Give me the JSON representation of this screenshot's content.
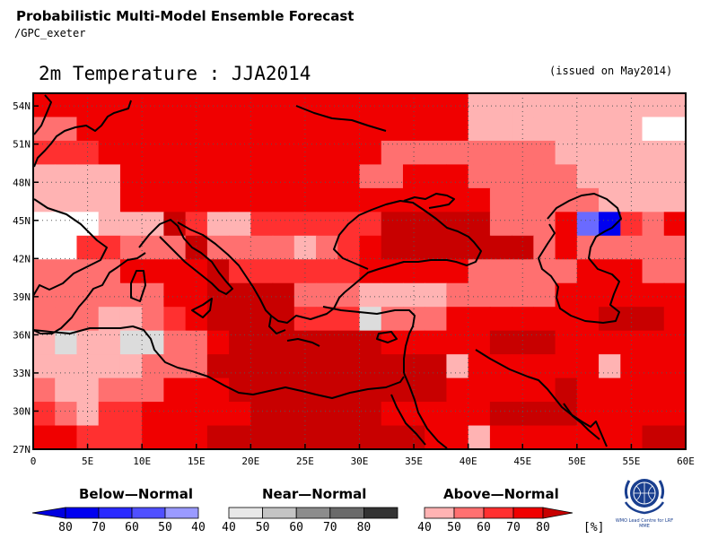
{
  "header": {
    "title": "Probabilistic Multi-Model Ensemble Forecast",
    "subtitle": "/GPC_exeter"
  },
  "map": {
    "title": "2m Temperature : JJA2014",
    "issued": "(issued on May2014)",
    "lon_range": [
      0,
      60
    ],
    "lat_range": [
      27,
      55
    ],
    "lon_ticks": [
      "0",
      "5E",
      "10E",
      "15E",
      "20E",
      "25E",
      "30E",
      "35E",
      "40E",
      "45E",
      "50E",
      "55E",
      "60E"
    ],
    "lat_ticks": [
      "27N",
      "30N",
      "33N",
      "36N",
      "39N",
      "42N",
      "45N",
      "48N",
      "51N",
      "54N"
    ],
    "grid": true,
    "categories": {
      "W": "#ffffff",
      "G1": "#dcdcdc",
      "A1": "#ffb3b3",
      "A2": "#ff7070",
      "A3": "#ff3030",
      "A4": "#f00000",
      "A5": "#c80000",
      "B3": "#6a6aff",
      "B4": "#0000f0"
    },
    "cells_note": "",
    "rows": [
      [
        "A4",
        "A4",
        "A4",
        "A4",
        "A4",
        "A4",
        "A4",
        "A4",
        "A4",
        "A4",
        "A4",
        "A4",
        "A4",
        "A4",
        "A4",
        "A4",
        "A4",
        "A4",
        "A4",
        "A4",
        "A1",
        "A1",
        "A1",
        "A1",
        "A1",
        "A1",
        "A1",
        "A1",
        "A1",
        "A1"
      ],
      [
        "A2",
        "A2",
        "A4",
        "A4",
        "A4",
        "A4",
        "A4",
        "A4",
        "A4",
        "A4",
        "A4",
        "A4",
        "A4",
        "A4",
        "A4",
        "A4",
        "A4",
        "A4",
        "A4",
        "A4",
        "A1",
        "A1",
        "A1",
        "A1",
        "A1",
        "A1",
        "A1",
        "A1",
        "W",
        "W"
      ],
      [
        "A3",
        "A3",
        "A3",
        "A4",
        "A4",
        "A4",
        "A4",
        "A4",
        "A4",
        "A4",
        "A4",
        "A4",
        "A4",
        "A4",
        "A4",
        "A4",
        "A2",
        "A2",
        "A2",
        "A2",
        "A2",
        "A2",
        "A2",
        "A2",
        "A1",
        "A1",
        "A1",
        "A1",
        "A1",
        "A1"
      ],
      [
        "A1",
        "A1",
        "A1",
        "A1",
        "A4",
        "A4",
        "A4",
        "A4",
        "A4",
        "A4",
        "A4",
        "A4",
        "A4",
        "A4",
        "A4",
        "A2",
        "A2",
        "A4",
        "A4",
        "A4",
        "A2",
        "A2",
        "A2",
        "A2",
        "A2",
        "A1",
        "A1",
        "A1",
        "A1",
        "A1"
      ],
      [
        "A1",
        "A1",
        "A1",
        "A1",
        "A4",
        "A4",
        "A4",
        "A4",
        "A4",
        "A4",
        "A4",
        "A4",
        "A4",
        "A4",
        "A4",
        "A4",
        "A4",
        "A4",
        "A4",
        "A4",
        "A4",
        "A2",
        "A2",
        "A2",
        "A2",
        "A2",
        "A1",
        "A1",
        "A1",
        "A1"
      ],
      [
        "W",
        "W",
        "W",
        "A1",
        "A1",
        "A1",
        "A5",
        "A3",
        "A1",
        "A1",
        "A3",
        "A3",
        "A3",
        "A3",
        "A3",
        "A3",
        "A5",
        "A5",
        "A5",
        "A5",
        "A5",
        "A2",
        "A2",
        "A2",
        "A4",
        "B3",
        "B4",
        "A3",
        "A2",
        "A4"
      ],
      [
        "W",
        "W",
        "A3",
        "A3",
        "A2",
        "A2",
        "A2",
        "A5",
        "A2",
        "A2",
        "A2",
        "A2",
        "A1",
        "A2",
        "A3",
        "A4",
        "A5",
        "A5",
        "A5",
        "A5",
        "A5",
        "A5",
        "A5",
        "A2",
        "A4",
        "A2",
        "A2",
        "A2",
        "A2",
        "A2"
      ],
      [
        "A2",
        "A2",
        "A2",
        "A2",
        "A4",
        "A4",
        "A4",
        "A4",
        "A5",
        "A3",
        "A3",
        "A3",
        "A3",
        "A3",
        "A3",
        "A4",
        "A4",
        "A4",
        "A4",
        "A4",
        "A2",
        "A2",
        "A2",
        "A2",
        "A2",
        "A4",
        "A4",
        "A4",
        "A2",
        "A2"
      ],
      [
        "A2",
        "A2",
        "A2",
        "A2",
        "A2",
        "A2",
        "A4",
        "A4",
        "A5",
        "A5",
        "A5",
        "A5",
        "A2",
        "A2",
        "A2",
        "A1",
        "A1",
        "A1",
        "A1",
        "A2",
        "A2",
        "A2",
        "A2",
        "A2",
        "A4",
        "A4",
        "A4",
        "A4",
        "A4",
        "A4"
      ],
      [
        "A2",
        "A2",
        "A2",
        "A1",
        "A1",
        "A2",
        "A3",
        "A4",
        "A5",
        "A5",
        "A5",
        "A5",
        "A3",
        "A3",
        "A3",
        "G1",
        "A2",
        "A2",
        "A2",
        "A4",
        "A4",
        "A4",
        "A4",
        "A4",
        "A4",
        "A4",
        "A5",
        "A5",
        "A5",
        "A4"
      ],
      [
        "A1",
        "G1",
        "A1",
        "A1",
        "G1",
        "G1",
        "A2",
        "A2",
        "A4",
        "A5",
        "A5",
        "A5",
        "A5",
        "A5",
        "A5",
        "A5",
        "A4",
        "A4",
        "A4",
        "A4",
        "A4",
        "A5",
        "A5",
        "A5",
        "A4",
        "A4",
        "A4",
        "A4",
        "A4",
        "A4"
      ],
      [
        "A1",
        "A1",
        "A1",
        "A1",
        "A1",
        "A2",
        "A2",
        "A2",
        "A5",
        "A5",
        "A5",
        "A5",
        "A5",
        "A5",
        "A5",
        "A5",
        "A5",
        "A5",
        "A5",
        "A1",
        "A4",
        "A4",
        "A4",
        "A4",
        "A4",
        "A4",
        "A1",
        "A4",
        "A4",
        "A4"
      ],
      [
        "A2",
        "A1",
        "A1",
        "A2",
        "A2",
        "A2",
        "A4",
        "A4",
        "A4",
        "A5",
        "A5",
        "A5",
        "A5",
        "A5",
        "A5",
        "A5",
        "A5",
        "A5",
        "A5",
        "A4",
        "A4",
        "A4",
        "A4",
        "A4",
        "A5",
        "A4",
        "A4",
        "A4",
        "A4",
        "A4"
      ],
      [
        "A3",
        "A2",
        "A1",
        "A3",
        "A3",
        "A4",
        "A4",
        "A4",
        "A4",
        "A4",
        "A5",
        "A5",
        "A5",
        "A5",
        "A5",
        "A5",
        "A4",
        "A4",
        "A4",
        "A4",
        "A4",
        "A5",
        "A5",
        "A5",
        "A5",
        "A4",
        "A4",
        "A4",
        "A4",
        "A4"
      ],
      [
        "A4",
        "A4",
        "A3",
        "A3",
        "A3",
        "A4",
        "A4",
        "A4",
        "A5",
        "A5",
        "A5",
        "A5",
        "A5",
        "A5",
        "A5",
        "A5",
        "A5",
        "A5",
        "A4",
        "A4",
        "A1",
        "A4",
        "A4",
        "A4",
        "A4",
        "A4",
        "A4",
        "A4",
        "A5",
        "A5"
      ]
    ]
  },
  "legend": {
    "below": {
      "label": "Below—Normal",
      "ticks": [
        "80",
        "70",
        "60",
        "50",
        "40"
      ],
      "colors": [
        "#0000e0",
        "#0000f0",
        "#2a2aff",
        "#5050ff",
        "#9a9aff"
      ]
    },
    "near": {
      "label": "Near—Normal",
      "ticks": [
        "40",
        "50",
        "60",
        "70",
        "80"
      ],
      "colors": [
        "#e8e8e8",
        "#c4c4c4",
        "#8c8c8c",
        "#6a6a6a",
        "#333333"
      ]
    },
    "above": {
      "label": "Above—Normal",
      "ticks": [
        "40",
        "50",
        "60",
        "70",
        "80"
      ],
      "colors": [
        "#ffb3b3",
        "#ff7070",
        "#ff3030",
        "#f00000",
        "#c80000"
      ]
    },
    "unit": "[%]"
  },
  "logo": {
    "name": "wmo-emblem-icon",
    "caption": "WMO Lead Centre for LRF MME"
  }
}
